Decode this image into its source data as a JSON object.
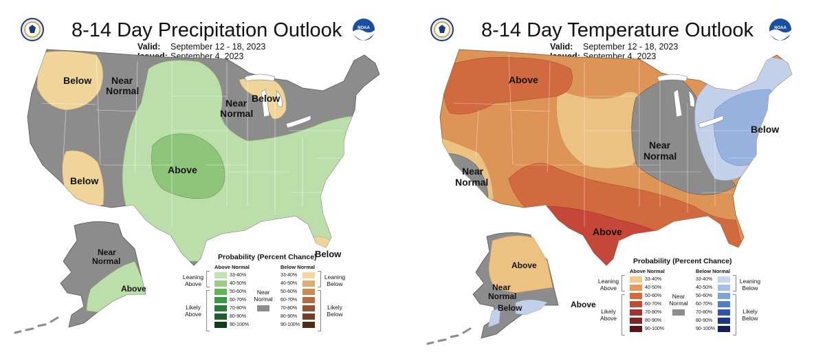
{
  "precip": {
    "title": "8-14 Day Precipitation Outlook",
    "valid_label": "Valid:",
    "valid_dates": "September 12 - 18, 2023",
    "issued_label": "Issued:",
    "issued_date": "September 4, 2023",
    "noaa_text": "NOAA",
    "regions": {
      "below_nw": "Below",
      "near_nw_1": "Near",
      "near_nw_2": "Normal",
      "near_gl_1": "Near",
      "near_gl_2": "Normal",
      "below_gl": "Below",
      "below_ca": "Below",
      "above_plains": "Above",
      "near_ak_1": "Near",
      "near_ak_2": "Normal",
      "above_ak": "Above",
      "below_fl": "Below"
    },
    "legend": {
      "title": "Probability (Percent Chance)",
      "above_head": "Above Normal",
      "below_head": "Below Normal",
      "leaning_above_1": "Leaning",
      "leaning_above_2": "Above",
      "likely_above_1": "Likely",
      "likely_above_2": "Above",
      "near_1": "Near",
      "near_2": "Normal",
      "leaning_below_1": "Leaning",
      "leaning_below_2": "Below",
      "likely_below_1": "Likely",
      "likely_below_2": "Below",
      "ranges": [
        "33-40%",
        "40-50%",
        "50-60%",
        "60-70%",
        "70-80%",
        "80-90%",
        "90-100%"
      ],
      "above_colors": [
        "#c4e3b4",
        "#98cf84",
        "#62b35b",
        "#3f9548",
        "#2c7a3a",
        "#1d5e2c",
        "#0f3d1a"
      ],
      "below_colors": [
        "#f3d7a0",
        "#e0ad6f",
        "#c98a55",
        "#ae6d42",
        "#935534",
        "#733f26",
        "#4f2a19"
      ]
    }
  },
  "temp": {
    "title": "8-14 Day Temperature Outlook",
    "valid_label": "Valid:",
    "valid_dates": "September 12 - 18, 2023",
    "issued_label": "Issued:",
    "issued_date": "September 4, 2023",
    "noaa_text": "NOAA",
    "regions": {
      "above_nw": "Above",
      "near_ca_1": "Near",
      "near_ca_2": "Normal",
      "near_mw_1": "Near",
      "near_mw_2": "Normal",
      "below_ne": "Below",
      "above_tx": "Above",
      "above_ak": "Above",
      "near_ak_1": "Near",
      "near_ak_2": "Normal",
      "below_ak": "Below",
      "above_aleut": "Above"
    },
    "legend": {
      "title": "Probability (Percent Chance)",
      "above_head": "Above Normal",
      "below_head": "Below Normal",
      "leaning_above_1": "Leaning",
      "leaning_above_2": "Above",
      "likely_above_1": "Likely",
      "likely_above_2": "Above",
      "near_1": "Near",
      "near_2": "Normal",
      "leaning_below_1": "Leaning",
      "leaning_below_2": "Below",
      "likely_below_1": "Likely",
      "likely_below_2": "Below",
      "ranges": [
        "33-40%",
        "40-50%",
        "50-60%",
        "60-70%",
        "70-80%",
        "80-90%",
        "90-100%"
      ],
      "above_colors": [
        "#f0c890",
        "#e5985a",
        "#d46a3d",
        "#c04a33",
        "#a23232",
        "#7e2424",
        "#581717"
      ],
      "below_colors": [
        "#c9d5ec",
        "#a7bfe4",
        "#7fa3d6",
        "#4f7fc2",
        "#2f56a8",
        "#1e3683",
        "#151f5c"
      ]
    }
  },
  "colors": {
    "near_normal": "#8c8c8c",
    "green_light": "#bcdeab",
    "green_mid": "#8fc57a",
    "tan_light": "#f0d59a",
    "orange_light": "#ebc282",
    "orange_mid": "#df9457",
    "orange_dark": "#d26a3f",
    "red": "#c4473a",
    "blue_light": "#c3d0ea",
    "blue_mid": "#97b2de"
  }
}
